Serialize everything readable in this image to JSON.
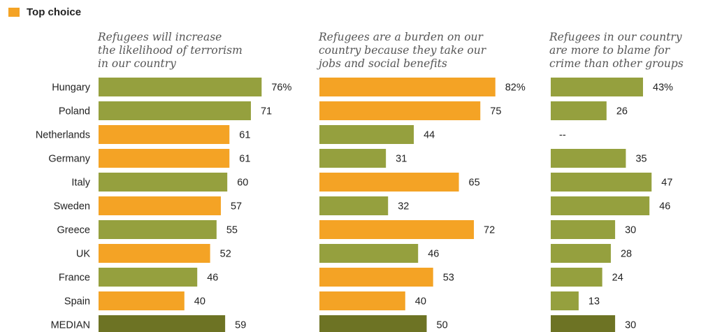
{
  "legend": {
    "label": "Top choice",
    "color": "#F4A325"
  },
  "colors": {
    "top": "#F4A325",
    "other": "#95A03E",
    "median": "#6D7324"
  },
  "chart_data": {
    "type": "bar",
    "orientation": "horizontal",
    "categories": [
      "Hungary",
      "Poland",
      "Netherlands",
      "Germany",
      "Italy",
      "Sweden",
      "Greece",
      "UK",
      "France",
      "Spain",
      "MEDIAN"
    ],
    "value_labels_format": "percent on first row only",
    "panels": [
      {
        "title": "Refugees will increase\nthe likelihood of terrorism\nin our country",
        "values": [
          76,
          71,
          61,
          61,
          60,
          57,
          55,
          52,
          46,
          40,
          59
        ],
        "labels": [
          "76%",
          "71",
          "61",
          "61",
          "60",
          "57",
          "55",
          "52",
          "46",
          "40",
          "59"
        ],
        "top_choice": [
          false,
          false,
          true,
          true,
          false,
          true,
          false,
          true,
          false,
          true,
          false
        ]
      },
      {
        "title": "Refugees are a burden on our\ncountry because they take our\njobs and social benefits",
        "values": [
          82,
          75,
          44,
          31,
          65,
          32,
          72,
          46,
          53,
          40,
          50
        ],
        "labels": [
          "82%",
          "75",
          "44",
          "31",
          "65",
          "32",
          "72",
          "46",
          "53",
          "40",
          "50"
        ],
        "top_choice": [
          true,
          true,
          false,
          false,
          true,
          false,
          true,
          false,
          true,
          true,
          false
        ]
      },
      {
        "title": "Refugees in our country\nare more to blame for\ncrime than other groups",
        "values": [
          43,
          26,
          null,
          35,
          47,
          46,
          30,
          28,
          24,
          13,
          30
        ],
        "labels": [
          "43%",
          "26",
          "--",
          "35",
          "47",
          "46",
          "30",
          "28",
          "24",
          "13",
          "30"
        ],
        "top_choice": [
          false,
          false,
          false,
          false,
          false,
          false,
          false,
          false,
          false,
          false,
          false
        ]
      }
    ]
  }
}
